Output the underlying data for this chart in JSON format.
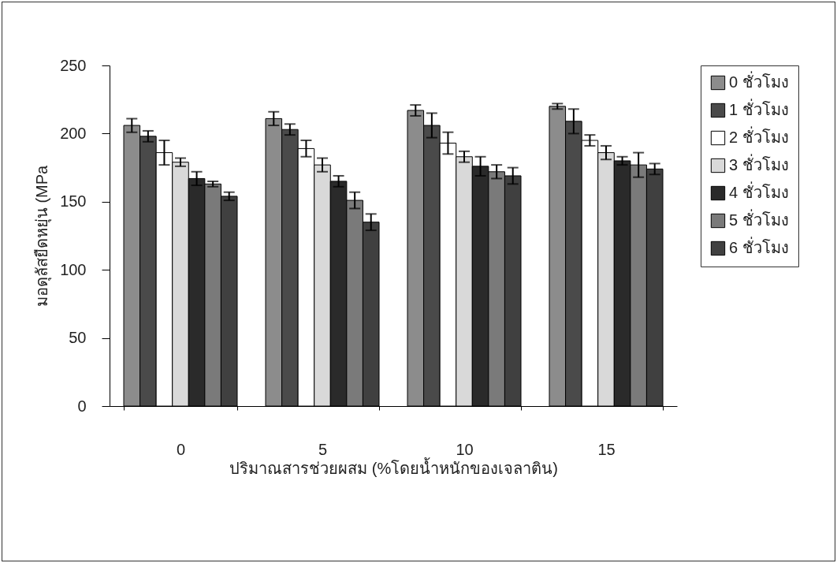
{
  "chart_data": {
    "type": "bar",
    "xlabel": "ปริมาณสารช่วยผสม (%โดยน้ำหนักของเจลาติน)",
    "ylabel": "มอดุลัสยืดหยุ่น (MPa",
    "categories": [
      "0",
      "5",
      "10",
      "15"
    ],
    "ylim": [
      0,
      250
    ],
    "yticks": [
      0,
      50,
      100,
      150,
      200,
      250
    ],
    "grid": false,
    "legend": "right",
    "series": [
      {
        "name": "0 ชั่วโมง",
        "color": "#8c8c8c",
        "values": [
          206,
          211,
          217,
          220
        ],
        "errors": [
          5,
          5,
          4,
          2
        ]
      },
      {
        "name": "1 ชั่วโมง",
        "color": "#4a4a4a",
        "values": [
          198,
          203,
          206,
          209
        ],
        "errors": [
          4,
          4,
          9,
          9
        ]
      },
      {
        "name": "2 ชั่วโมง",
        "color": "#ffffff",
        "values": [
          186,
          189,
          193,
          195
        ],
        "errors": [
          9,
          6,
          8,
          4
        ]
      },
      {
        "name": "3 ชั่วโมง",
        "color": "#d9d9d9",
        "values": [
          179,
          177,
          183,
          186
        ],
        "errors": [
          3,
          5,
          4,
          5
        ]
      },
      {
        "name": "4 ชั่วโมง",
        "color": "#2a2a2a",
        "values": [
          167,
          165,
          176,
          180
        ],
        "errors": [
          5,
          4,
          7,
          3
        ]
      },
      {
        "name": "5 ชั่วโมง",
        "color": "#7a7a7a",
        "values": [
          163,
          151,
          172,
          177
        ],
        "errors": [
          2,
          6,
          5,
          9
        ]
      },
      {
        "name": "6 ชั่วโมง",
        "color": "#404040",
        "values": [
          154,
          135,
          169,
          174
        ],
        "errors": [
          3,
          6,
          6,
          4
        ]
      }
    ]
  }
}
